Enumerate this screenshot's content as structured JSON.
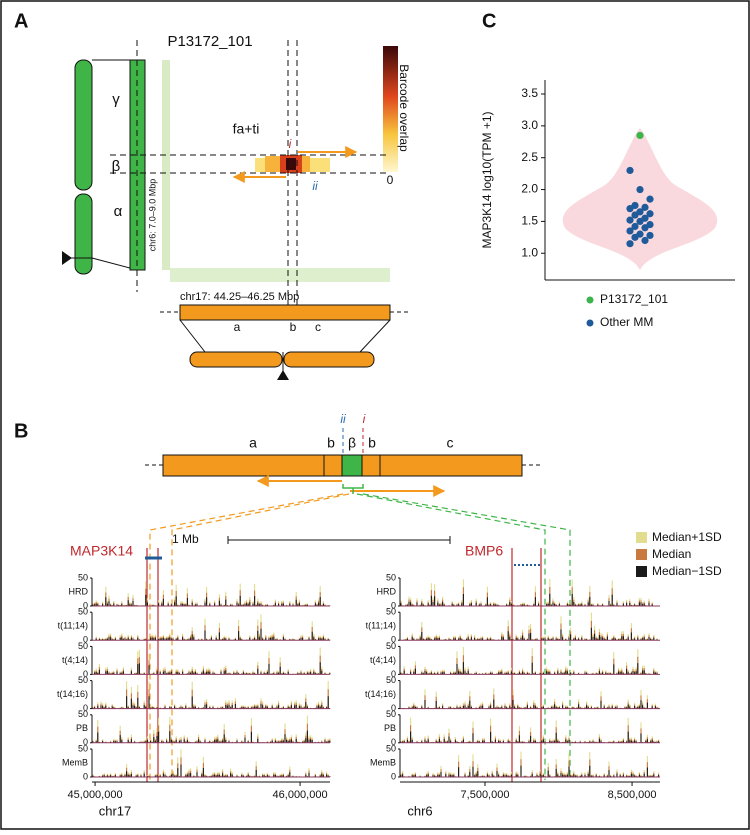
{
  "panel_a": {
    "label": "A",
    "title": "P13172_101",
    "colorbar_label": "Barcode overlap",
    "colorbar_min": 0,
    "annotation": "fa+ti",
    "breakpoint_i": "i",
    "breakpoint_ii": "ii",
    "region_labels": [
      "γ",
      "β",
      "α"
    ],
    "y_region": "chr6: 7.0–9.0 Mbp",
    "x_region": "chr17: 44.25–46.25 Mbp",
    "segments": [
      "a",
      "b",
      "c"
    ]
  },
  "panel_b": {
    "label": "B",
    "segments": [
      "a",
      "b",
      "β",
      "b",
      "c"
    ],
    "breakpoint_ii": "ii",
    "breakpoint_i": "i",
    "scale_bar": "1 Mb",
    "legend": [
      {
        "name": "Median+1SD",
        "color": "#e2dc8e"
      },
      {
        "name": "Median",
        "color": "#c8793f"
      },
      {
        "name": "Median−1SD",
        "color": "#1a1a1a"
      }
    ],
    "tracks": [
      "HRD",
      "t(11;14)",
      "t(4;14)",
      "t(14;16)",
      "PB",
      "MemB"
    ],
    "track_yticks": [
      0,
      50
    ],
    "left": {
      "gene": "MAP3K14",
      "chrom": "chr17",
      "xlim": [
        44985000,
        46146000
      ],
      "xticks": [
        {
          "value": 45000000,
          "label": "45,000,000"
        },
        {
          "value": 46000000,
          "label": "46,000,000"
        }
      ]
    },
    "right": {
      "gene": "BMP6",
      "chrom": "chr6",
      "xlim": [
        6922000,
        8690000
      ],
      "xticks": [
        {
          "value": 7500000,
          "label": "7,500,000"
        },
        {
          "value": 8500000,
          "label": "8,500,000"
        }
      ]
    }
  },
  "chart_data": {
    "type": "violin",
    "label": "C",
    "ylabel": "MAP3K14 log10(TPM +1)",
    "violin_color": "#f9d9de",
    "ylim": [
      0.58,
      3.72
    ],
    "yticks": [
      {
        "value": 1,
        "label": "1.0"
      },
      1.5,
      {
        "value": 2,
        "label": "2.0"
      },
      2.5,
      {
        "value": 3,
        "label": "3.0"
      },
      3.5
    ],
    "series": [
      {
        "name": "P13172_101",
        "color": "#3cb44b",
        "values": [
          2.85
        ]
      },
      {
        "name": "Other MM",
        "color": "#1f5b9a",
        "values": [
          2.3,
          2.0,
          1.85,
          1.75,
          1.72,
          1.7,
          1.65,
          1.62,
          1.6,
          1.55,
          1.52,
          1.5,
          1.45,
          1.42,
          1.4,
          1.35,
          1.3,
          1.28,
          1.25,
          1.2,
          1.15
        ]
      }
    ]
  }
}
